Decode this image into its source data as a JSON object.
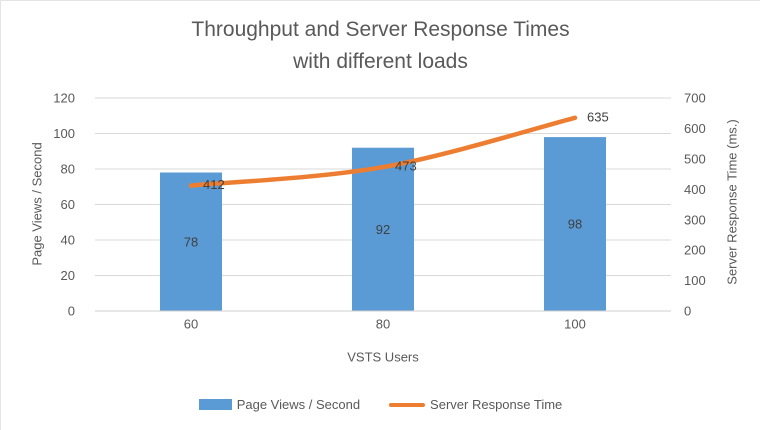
{
  "title": {
    "line1": "Throughput and Server Response Times",
    "line2": "with different loads"
  },
  "chart_data": {
    "type": "combo",
    "categories": [
      "60",
      "80",
      "100"
    ],
    "series": [
      {
        "name": "Page Views / Second",
        "type": "bar",
        "axis": "left",
        "color": "#5B9BD5",
        "values": [
          78,
          92,
          98
        ]
      },
      {
        "name": "Server Response Time",
        "type": "line",
        "axis": "right",
        "color": "#ED7D31",
        "smooth": true,
        "values": [
          412,
          473,
          635
        ]
      }
    ],
    "xlabel": "VSTS Users",
    "ylabel_left": "Page Views / Second",
    "ylabel_right": "Server Response Time (ms.)",
    "y_left": {
      "min": 0,
      "max": 120,
      "step": 20,
      "ticks": [
        0,
        20,
        40,
        60,
        80,
        100,
        120
      ]
    },
    "y_right": {
      "min": 0,
      "max": 700,
      "step": 100,
      "ticks": [
        0,
        100,
        200,
        300,
        400,
        500,
        600,
        700
      ]
    },
    "grid": true,
    "data_labels": true,
    "legend_position": "bottom"
  },
  "colors": {
    "bar": "#5B9BD5",
    "line": "#ED7D31",
    "grid": "#D9D9D9",
    "axis_line": "#CFCFCF",
    "tick_text": "#595959",
    "data_label_text": "#404040"
  }
}
